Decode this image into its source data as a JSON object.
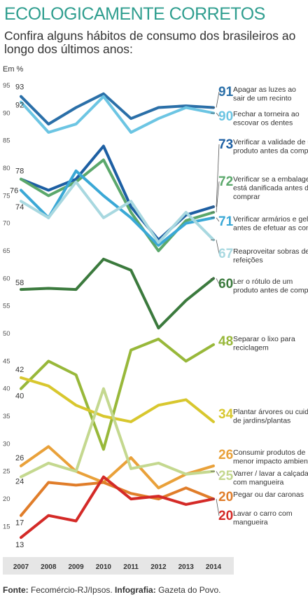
{
  "title": "ECOLOGICAMENTE CORRETOS",
  "subtitle": "Confira alguns hábitos de consumo dos brasileiros ao longo dos últimos anos:",
  "unit": "Em %",
  "source_label": "Fonte:",
  "source_text": "Fecomércio-RJ/Ipsos.",
  "credit_label": "Infografia:",
  "credit_text": "Gazeta do Povo.",
  "chart_data": {
    "type": "line",
    "x": [
      2007,
      2008,
      2009,
      2010,
      2011,
      2012,
      2013,
      2014
    ],
    "ylim": [
      12,
      95
    ],
    "yticks": [
      15,
      20,
      25,
      30,
      35,
      40,
      45,
      50,
      55,
      60,
      65,
      70,
      75,
      80,
      85,
      90,
      95
    ],
    "grid": false,
    "legend": "right, at line ends",
    "series": [
      {
        "name": "Apagar as luzes ao sair de um recinto",
        "desc_lines": [
          "Apagar as luzes ao",
          "sair de um recinto"
        ],
        "color": "#2a6fa8",
        "start_label": "93",
        "end_label": "91",
        "values": [
          93,
          88,
          91,
          93.5,
          89,
          91,
          91.3,
          91
        ]
      },
      {
        "name": "Fechar a torneira ao escovar os dentes",
        "desc_lines": [
          "Fechar a torneira ao",
          "escovar os dentes"
        ],
        "color": "#6cc5e3",
        "start_label": "92",
        "end_label": "90",
        "values": [
          92,
          86.5,
          88,
          93,
          86.5,
          89,
          91,
          90
        ]
      },
      {
        "name": "Verificar a validade de um produto antes da compra",
        "desc_lines": [
          "Verificar a validade de um",
          "produto antes da compra"
        ],
        "color": "#1d5fa3",
        "start_label": "78",
        "end_label": "73",
        "values": [
          78,
          76,
          78,
          84,
          73,
          67,
          71.5,
          73
        ]
      },
      {
        "name": "Verificar se a embalagem está danificada antes de comprar",
        "desc_lines": [
          "Verificar se a embalagem",
          "está danificada antes de",
          "comprar"
        ],
        "color": "#5ba86b",
        "start_label": "78",
        "end_label": "72",
        "values": [
          78,
          75,
          77.5,
          81.5,
          72,
          65,
          70.5,
          72
        ]
      },
      {
        "name": "Verificar armários e geladeira antes de efetuar as compras",
        "desc_lines": [
          "Verificar armários e geladeira",
          "antes de efetuar as compras"
        ],
        "color": "#3aa8d6",
        "start_label": "76",
        "end_label": "71",
        "values": [
          76,
          71,
          79.5,
          75,
          71,
          66,
          70,
          71
        ]
      },
      {
        "name": "Reaproveitar sobras de refeições",
        "desc_lines": [
          "Reaproveitar sobras de",
          "refeições"
        ],
        "color": "#a8d8e0",
        "start_label": "74",
        "end_label": "67",
        "values": [
          74,
          71,
          77.5,
          71,
          74,
          66.5,
          72,
          67
        ]
      },
      {
        "name": "Ler o rótulo de um produto antes de comprar",
        "desc_lines": [
          "Ler o rótulo de um",
          "produto antes de comprar"
        ],
        "color": "#3b7a3d",
        "start_label": "58",
        "end_label": "60",
        "values": [
          58,
          58.2,
          58,
          63.5,
          61.5,
          51,
          56,
          60
        ]
      },
      {
        "name": "Separar o lixo para reciclagem",
        "desc_lines": [
          "Separar o lixo para",
          "reciclagem"
        ],
        "color": "#98b83a",
        "start_label": "40",
        "end_label": "48",
        "values": [
          40,
          45,
          42.5,
          29,
          47,
          49,
          45,
          48
        ]
      },
      {
        "name": "Plantar árvores ou cuidar de jardins/plantas",
        "desc_lines": [
          "Plantar árvores ou cuidar",
          "de jardins/plantas"
        ],
        "color": "#d8c72e",
        "start_label": "42",
        "end_label": "34",
        "values": [
          42,
          40.5,
          37,
          35,
          34,
          37,
          38,
          34
        ]
      },
      {
        "name": "Consumir produtos de menor impacto ambiental",
        "desc_lines": [
          "Consumir produtos de",
          "menor impacto ambiental"
        ],
        "color": "#e9a13a",
        "start_label": "26",
        "end_label": "26",
        "values": [
          26,
          29.5,
          25,
          23,
          27.5,
          22,
          24.5,
          26
        ]
      },
      {
        "name": "Varrer / lavar a calçada com mangueira",
        "desc_lines": [
          "Varrer / lavar a calçada",
          "com mangueira"
        ],
        "color": "#c4d88f",
        "start_label": "24",
        "end_label": "25",
        "values": [
          24,
          26.5,
          25,
          40,
          25.5,
          26.5,
          24.5,
          25
        ]
      },
      {
        "name": "Pegar ou dar caronas",
        "desc_lines": [
          "Pegar ou dar caronas"
        ],
        "color": "#e07d2a",
        "start_label": "17",
        "end_label": "20",
        "values": [
          17,
          23,
          22.5,
          23,
          21,
          20,
          22,
          20
        ]
      },
      {
        "name": "Lavar o carro com mangueira",
        "desc_lines": [
          "Lavar o carro com",
          "mangueira"
        ],
        "color": "#d42a27",
        "start_label": "13",
        "end_label": "20",
        "values": [
          13,
          17,
          16,
          24,
          20,
          20.5,
          19,
          20
        ]
      }
    ]
  }
}
